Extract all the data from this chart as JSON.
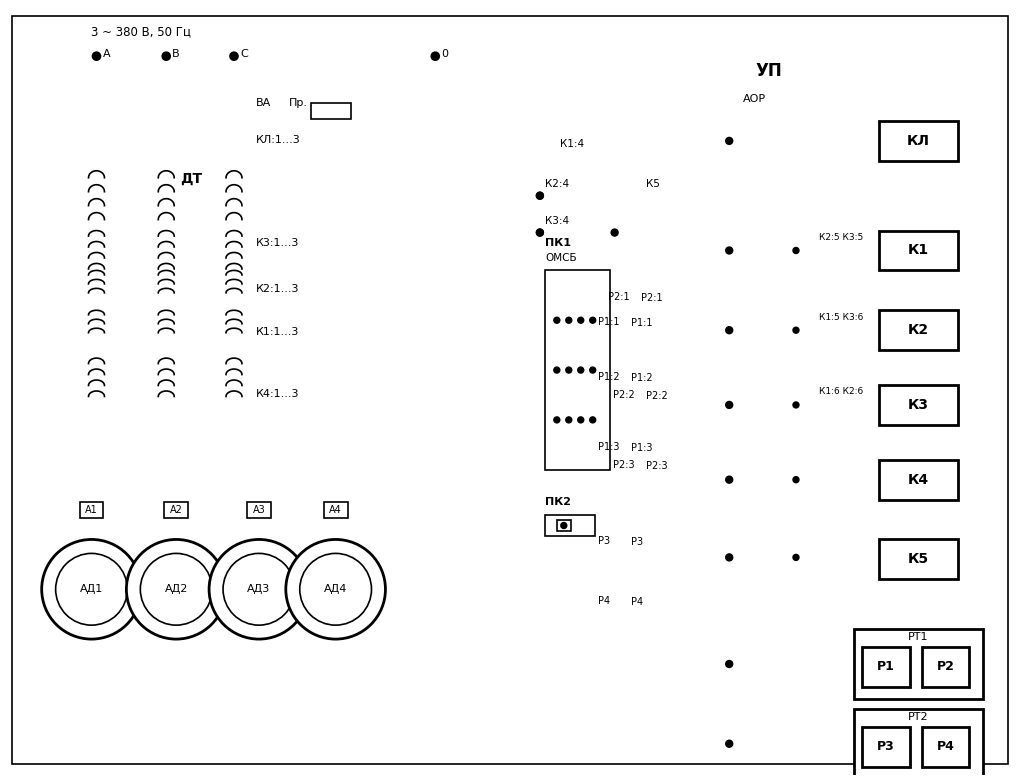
{
  "bg_color": "#ffffff",
  "lc": "#000000",
  "labels": {
    "power": "3 ~ 380 В, 50 Гц",
    "A": "A",
    "B": "B",
    "C": "C",
    "zero": "0",
    "VA": "ВА",
    "Pr": "Пр.",
    "KL13": "КЛ:1...3",
    "DT": "ДТ",
    "K313": "К3:1...3",
    "K213": "К2:1...3",
    "K113": "К1:1...3",
    "K413": "К4:1...3",
    "A1": "A1",
    "A2": "A2",
    "A3": "A3",
    "A4": "A4",
    "AD1": "АД1",
    "AD2": "АД2",
    "AD3": "АД3",
    "AD4": "АД4",
    "UP": "УП",
    "AOP": "АОР",
    "KL": "КЛ",
    "K1": "К1",
    "K2": "К2",
    "K3": "К3",
    "K4": "К4",
    "K5": "К5",
    "RT1": "РТ1",
    "RT2": "РТ2",
    "P1": "Р1",
    "P2": "Р2",
    "P3": "Р3",
    "P4": "Р4",
    "PK1": "ПК1",
    "OMSB": "ОМСБ",
    "PK2": "ПК2",
    "K14": "К1:4",
    "K24": "К2:4",
    "K34": "К3:4",
    "K5sw": "К5",
    "P11": "Р1:1",
    "P21": "Р2:1",
    "P12": "Р1:2",
    "P22": "Р2:2",
    "P13": "Р1:3",
    "P23": "Р2:3",
    "P3sw": "Р3",
    "P4sw": "Р4",
    "K25K35": "К2:5 К3:5",
    "K15K36": "К1:5 К3:6",
    "K16K26": "К1:6 К2:6"
  }
}
